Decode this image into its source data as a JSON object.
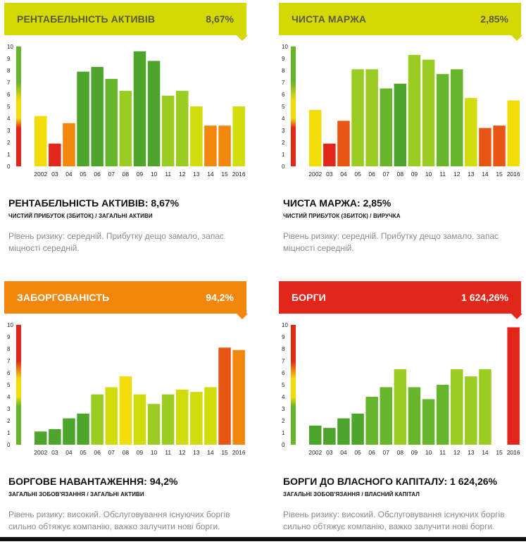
{
  "colors": {
    "red": "#e2271a",
    "orange_red": "#e85615",
    "orange": "#f3860c",
    "yellow": "#f2dc0a",
    "yellow_green": "#d2db0c",
    "light_green": "#9bcc22",
    "green": "#66b52a",
    "dark_green": "#4ea52b"
  },
  "panels": [
    {
      "header_title": "РЕНТАБЕЛЬНІСТЬ АКТИВІВ",
      "header_value": "8,67%",
      "header_bg": "#d4d804",
      "header_text": "#5a5a3a",
      "scale": [
        "#e2271a",
        "#f2dc0a",
        "#66b52a"
      ],
      "metric_title": "РЕНТАБЕЛЬНІСТЬ АКТИВІВ: 8,67%",
      "formula": "ЧИСТИЙ ПРИБУТОК (ЗБИТОК) / ЗАГАЛЬНІ АКТИВИ",
      "risk": "Рівень ризику: середній. Прибутку дещо замало, запас міцності середній."
    },
    {
      "header_title": "ЧИСТА МАРЖА",
      "header_value": "2,85%",
      "header_bg": "#d4d804",
      "header_text": "#5a5a3a",
      "scale": [
        "#e2271a",
        "#f2dc0a",
        "#66b52a"
      ],
      "metric_title": "ЧИСТА МАРЖА: 2,85%",
      "formula": "ЧИСТИЙ ПРИБУТОК (ЗБИТОК) / ВИРУЧКА",
      "risk": "Рівень ризику: середній. Прибутку дещо замало, запас міцності середній."
    },
    {
      "header_title": "ЗАБОРГОВАНІСТЬ",
      "header_value": "94,2%",
      "header_bg": "#f3860c",
      "header_text": "#ffffff",
      "scale": [
        "#66b52a",
        "#f2dc0a",
        "#e2271a"
      ],
      "metric_title": "БОРГОВЕ НАВАНТАЖЕННЯ: 94,2%",
      "formula": "ЗАГАЛЬНІ ЗОБОВ'ЯЗАННЯ / ЗАГАЛЬНІ АКТИВИ",
      "risk": "Рівень ризику: високий. Обслуговування існуючих боргів сильно обтяжує компанію, важко залучити нові борги."
    },
    {
      "header_title": "БОРГИ",
      "header_value": "1 624,26%",
      "header_bg": "#e2271a",
      "header_text": "#ffffff",
      "scale": [
        "#66b52a",
        "#f2dc0a",
        "#e2271a"
      ],
      "metric_title": "БОРГИ ДО ВЛАСНОГО КАПІТАЛУ: 1 624,26%",
      "formula": "ЗАГАЛЬНІ ЗОБОВ'ЯЗАННЯ / ВЛАСНИЙ КАПІТАЛ",
      "risk": "Рівень ризику: високий. Обслуговування існуючих боргів сильно обтяжує компанію, важко залучити нові борги."
    }
  ],
  "chart_data": [
    {
      "type": "bar",
      "title": "РЕНТАБЕЛЬНІСТЬ АКТИВІВ",
      "categories": [
        "2002",
        "03",
        "04",
        "05",
        "06",
        "07",
        "08",
        "09",
        "10",
        "11",
        "12",
        "13",
        "14",
        "15",
        "2016"
      ],
      "values": [
        4.2,
        1.9,
        3.6,
        7.9,
        8.3,
        7.3,
        6.3,
        9.6,
        8.8,
        5.9,
        6.3,
        5.0,
        3.4,
        3.4,
        5.0
      ],
      "bar_colors": [
        "#f2dc0a",
        "#e2271a",
        "#f3860c",
        "#4ea52b",
        "#4ea52b",
        "#66b52a",
        "#9bcc22",
        "#4ea52b",
        "#4ea52b",
        "#9bcc22",
        "#9bcc22",
        "#d2db0c",
        "#f3860c",
        "#f3860c",
        "#d2db0c"
      ],
      "yticks": [
        "0",
        "1",
        "2",
        "3",
        "4",
        "5",
        "6",
        "7",
        "8",
        "9",
        "10"
      ],
      "ylim": [
        0,
        10
      ]
    },
    {
      "type": "bar",
      "title": "ЧИСТА МАРЖА",
      "categories": [
        "2002",
        "03",
        "04",
        "05",
        "06",
        "07",
        "08",
        "09",
        "10",
        "11",
        "12",
        "13",
        "14",
        "15",
        "2016"
      ],
      "values": [
        4.7,
        1.9,
        3.8,
        8.1,
        8.1,
        6.5,
        6.9,
        9.3,
        8.9,
        7.7,
        8.1,
        5.7,
        3.2,
        3.4,
        5.5
      ],
      "bar_colors": [
        "#f2dc0a",
        "#e2271a",
        "#e85615",
        "#9bcc22",
        "#9bcc22",
        "#66b52a",
        "#4ea52b",
        "#9bcc22",
        "#9bcc22",
        "#66b52a",
        "#66b52a",
        "#d2db0c",
        "#e85615",
        "#e85615",
        "#f2dc0a"
      ],
      "yticks": [
        "0",
        "1",
        "2",
        "3",
        "4",
        "5",
        "6",
        "7",
        "8",
        "9",
        "10"
      ],
      "ylim": [
        0,
        10
      ]
    },
    {
      "type": "bar",
      "title": "ЗАБОРГОВАНІСТЬ",
      "categories": [
        "2002",
        "03",
        "04",
        "05",
        "06",
        "07",
        "08",
        "09",
        "10",
        "11",
        "12",
        "13",
        "14",
        "15",
        "2016"
      ],
      "values": [
        1.1,
        1.3,
        2.2,
        2.6,
        4.2,
        4.8,
        5.7,
        4.2,
        3.4,
        4.2,
        4.6,
        4.4,
        4.8,
        8.1,
        7.9
      ],
      "bar_colors": [
        "#4ea52b",
        "#4ea52b",
        "#4ea52b",
        "#4ea52b",
        "#9bcc22",
        "#d2db0c",
        "#f2dc0a",
        "#d2db0c",
        "#9bcc22",
        "#9bcc22",
        "#d2db0c",
        "#d2db0c",
        "#d2db0c",
        "#e85615",
        "#f3860c"
      ],
      "yticks": [
        "0",
        "1",
        "2",
        "3",
        "4",
        "5",
        "6",
        "7",
        "8",
        "9",
        "10"
      ],
      "ylim": [
        0,
        10
      ]
    },
    {
      "type": "bar",
      "title": "БОРГИ",
      "categories": [
        "2002",
        "03",
        "04",
        "05",
        "06",
        "07",
        "08",
        "09",
        "10",
        "11",
        "12",
        "13",
        "14",
        "15",
        "2016"
      ],
      "values": [
        1.6,
        1.4,
        2.2,
        2.6,
        4.0,
        4.8,
        6.3,
        4.8,
        3.8,
        5.0,
        6.3,
        5.7,
        6.3,
        0,
        9.8
      ],
      "bar_colors": [
        "#4ea52b",
        "#4ea52b",
        "#4ea52b",
        "#4ea52b",
        "#66b52a",
        "#66b52a",
        "#9bcc22",
        "#66b52a",
        "#66b52a",
        "#66b52a",
        "#9bcc22",
        "#9bcc22",
        "#9bcc22",
        "#66b52a",
        "#e2271a"
      ],
      "yticks": [
        "0",
        "1",
        "2",
        "3",
        "4",
        "5",
        "6",
        "7",
        "8",
        "9",
        "10"
      ],
      "ylim": [
        0,
        10
      ]
    }
  ]
}
